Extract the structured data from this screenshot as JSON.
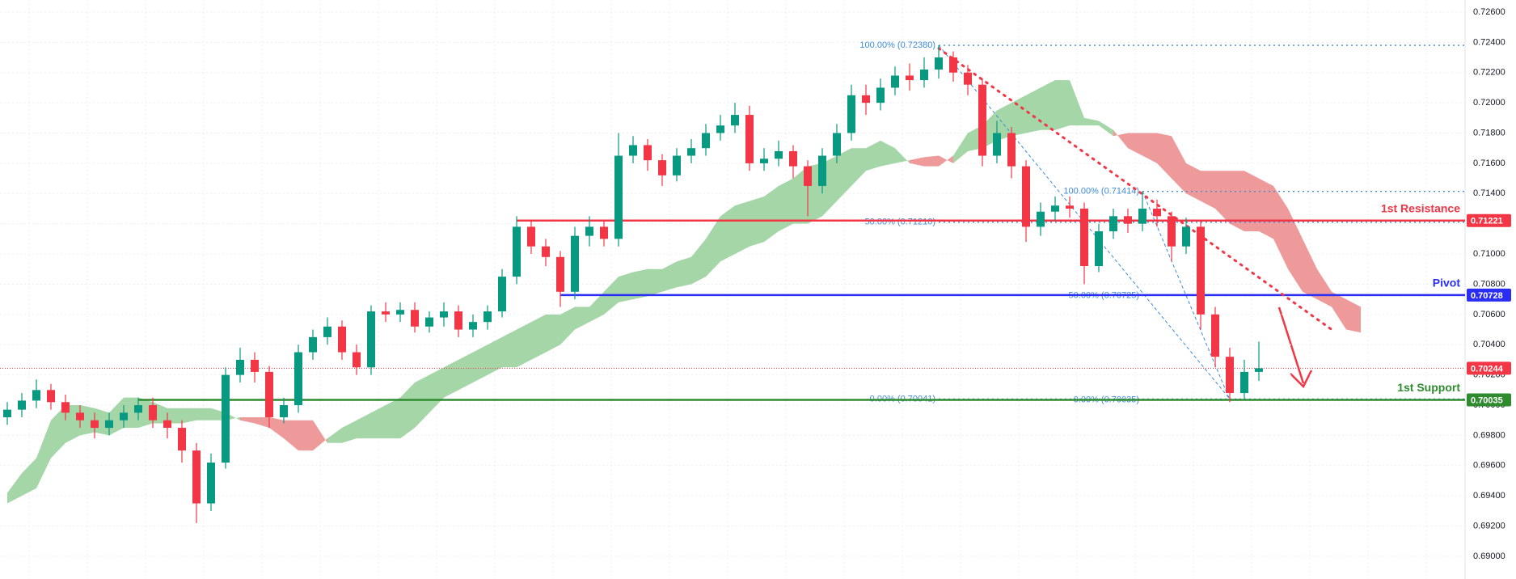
{
  "chart_data": {
    "type": "candlestick",
    "ylim": [
      0.6885,
      0.7268
    ],
    "yticks": [
      {
        "value": 0.69,
        "label": "0.69000"
      },
      {
        "value": 0.692,
        "label": "0.69200"
      },
      {
        "value": 0.694,
        "label": "0.69400"
      },
      {
        "value": 0.696,
        "label": "0.69600"
      },
      {
        "value": 0.698,
        "label": "0.69800"
      },
      {
        "value": 0.7,
        "label": "0.70000"
      },
      {
        "value": 0.702,
        "label": "0.70200"
      },
      {
        "value": 0.704,
        "label": "0.70400"
      },
      {
        "value": 0.706,
        "label": "0.70600"
      },
      {
        "value": 0.708,
        "label": "0.70800"
      },
      {
        "value": 0.71,
        "label": "0.71000"
      },
      {
        "value": 0.712,
        "label": "0.71200"
      },
      {
        "value": 0.714,
        "label": "0.71400"
      },
      {
        "value": 0.716,
        "label": "0.71600"
      },
      {
        "value": 0.718,
        "label": "0.71800"
      },
      {
        "value": 0.72,
        "label": "0.72000"
      },
      {
        "value": 0.722,
        "label": "0.72200"
      },
      {
        "value": 0.724,
        "label": "0.72400"
      },
      {
        "value": 0.726,
        "label": "0.72600"
      }
    ],
    "grid": true,
    "up_color": "#089981",
    "down_color": "#f23645",
    "open": [
      0.6992,
      0.6997,
      0.7003,
      0.701,
      0.7002,
      0.6995,
      0.699,
      0.6985,
      0.699,
      0.6995,
      0.7,
      0.699,
      0.6985,
      0.697,
      0.6935,
      0.6962,
      0.702,
      0.703,
      0.7022,
      0.6992,
      0.7,
      0.7035,
      0.7045,
      0.7052,
      0.7035,
      0.7025,
      0.7062,
      0.706,
      0.7063,
      0.7052,
      0.7058,
      0.7062,
      0.705,
      0.7055,
      0.7062,
      0.7085,
      0.7118,
      0.7105,
      0.7098,
      0.7075,
      0.7112,
      0.7118,
      0.711,
      0.7165,
      0.7172,
      0.7162,
      0.7152,
      0.7165,
      0.717,
      0.718,
      0.7185,
      0.7192,
      0.716,
      0.7163,
      0.7168,
      0.7158,
      0.7145,
      0.7165,
      0.718,
      0.7205,
      0.72,
      0.721,
      0.7218,
      0.7215,
      0.7222,
      0.723,
      0.722,
      0.7212,
      0.7165,
      0.718,
      0.7158,
      0.7118,
      0.7128,
      0.7132,
      0.713,
      0.7092,
      0.7115,
      0.7125,
      0.712,
      0.713,
      0.7125,
      0.7105,
      0.7118,
      0.706,
      0.7032,
      0.7008,
      0.7022
    ],
    "high": [
      0.7002,
      0.7008,
      0.7017,
      0.7014,
      0.7007,
      0.7,
      0.6995,
      0.6995,
      0.7,
      0.7005,
      0.7005,
      0.6995,
      0.699,
      0.6975,
      0.6968,
      0.7025,
      0.7038,
      0.7035,
      0.7026,
      0.7005,
      0.704,
      0.705,
      0.7058,
      0.7056,
      0.704,
      0.7066,
      0.7068,
      0.7068,
      0.7068,
      0.7062,
      0.7068,
      0.7066,
      0.706,
      0.7066,
      0.709,
      0.7125,
      0.7122,
      0.711,
      0.7102,
      0.7118,
      0.7125,
      0.7122,
      0.718,
      0.7178,
      0.7176,
      0.7166,
      0.717,
      0.7176,
      0.7186,
      0.7192,
      0.72,
      0.7198,
      0.717,
      0.7175,
      0.7172,
      0.7162,
      0.717,
      0.7186,
      0.7212,
      0.7212,
      0.7216,
      0.7224,
      0.7226,
      0.723,
      0.7238,
      0.7234,
      0.7225,
      0.7216,
      0.7188,
      0.7184,
      0.7162,
      0.7134,
      0.7138,
      0.7138,
      0.7134,
      0.712,
      0.713,
      0.713,
      0.7141,
      0.7136,
      0.7128,
      0.7124,
      0.7122,
      0.7065,
      0.7038,
      0.703,
      0.7042
    ],
    "low": [
      0.6987,
      0.6992,
      0.6998,
      0.6997,
      0.699,
      0.6985,
      0.6978,
      0.698,
      0.6985,
      0.699,
      0.6985,
      0.6978,
      0.6962,
      0.6922,
      0.693,
      0.6958,
      0.7015,
      0.7015,
      0.6985,
      0.6988,
      0.6995,
      0.703,
      0.704,
      0.703,
      0.702,
      0.702,
      0.7055,
      0.7055,
      0.7048,
      0.7048,
      0.7052,
      0.7045,
      0.7045,
      0.705,
      0.7058,
      0.708,
      0.71,
      0.7092,
      0.7065,
      0.707,
      0.7105,
      0.7105,
      0.7105,
      0.716,
      0.7155,
      0.7145,
      0.7148,
      0.716,
      0.7165,
      0.7175,
      0.718,
      0.7155,
      0.7155,
      0.7158,
      0.715,
      0.7125,
      0.714,
      0.716,
      0.7175,
      0.7192,
      0.7195,
      0.7205,
      0.7208,
      0.721,
      0.7216,
      0.7214,
      0.7205,
      0.7158,
      0.716,
      0.715,
      0.7108,
      0.7112,
      0.7122,
      0.7124,
      0.708,
      0.7088,
      0.711,
      0.7114,
      0.7115,
      0.7118,
      0.7095,
      0.71,
      0.705,
      0.7025,
      0.7002,
      0.7004,
      0.7016
    ],
    "close": [
      0.6997,
      0.7003,
      0.701,
      0.7002,
      0.6995,
      0.699,
      0.6985,
      0.699,
      0.6995,
      0.7,
      0.699,
      0.6985,
      0.697,
      0.6935,
      0.6962,
      0.702,
      0.703,
      0.7022,
      0.6992,
      0.7,
      0.7035,
      0.7045,
      0.7052,
      0.7035,
      0.7025,
      0.7062,
      0.706,
      0.7063,
      0.7052,
      0.7058,
      0.7062,
      0.705,
      0.7055,
      0.7062,
      0.7085,
      0.7118,
      0.7105,
      0.7098,
      0.7075,
      0.7112,
      0.7118,
      0.711,
      0.7165,
      0.7172,
      0.7162,
      0.7152,
      0.7165,
      0.717,
      0.718,
      0.7185,
      0.7192,
      0.716,
      0.7163,
      0.7168,
      0.7158,
      0.7145,
      0.7165,
      0.718,
      0.7205,
      0.72,
      0.721,
      0.7218,
      0.7215,
      0.7222,
      0.723,
      0.722,
      0.7212,
      0.7165,
      0.718,
      0.7158,
      0.7118,
      0.7128,
      0.7132,
      0.713,
      0.7092,
      0.7115,
      0.7125,
      0.712,
      0.713,
      0.7125,
      0.7105,
      0.7118,
      0.706,
      0.7032,
      0.7008,
      0.7022,
      0.70244
    ],
    "cloud": {
      "up_color": "#a5d6a7",
      "down_color": "#ef9a9a",
      "span_a": [
        0.6942,
        0.6955,
        0.6965,
        0.699,
        0.7,
        0.7,
        0.6998,
        0.6995,
        0.7005,
        0.7005,
        0.7002,
        0.6998,
        0.6998,
        0.6998,
        0.6998,
        0.6995,
        0.699,
        0.6988,
        0.6985,
        0.6978,
        0.697,
        0.697,
        0.6978,
        0.6985,
        0.699,
        0.6995,
        0.7,
        0.7005,
        0.7015,
        0.702,
        0.7025,
        0.703,
        0.7035,
        0.704,
        0.7045,
        0.705,
        0.7055,
        0.706,
        0.706,
        0.7065,
        0.7065,
        0.7075,
        0.7085,
        0.7088,
        0.709,
        0.709,
        0.7095,
        0.7098,
        0.711,
        0.7125,
        0.7132,
        0.7135,
        0.7138,
        0.7145,
        0.715,
        0.7158,
        0.716,
        0.7165,
        0.717,
        0.717,
        0.7175,
        0.717,
        0.716,
        0.7158,
        0.7158,
        0.7165,
        0.718,
        0.7185,
        0.7195,
        0.72,
        0.7205,
        0.721,
        0.7215,
        0.7215,
        0.719,
        0.7188,
        0.7182,
        0.717,
        0.7165,
        0.716,
        0.715,
        0.714,
        0.7135,
        0.713,
        0.712,
        0.7115,
        0.7115,
        0.711,
        0.709,
        0.7075,
        0.707,
        0.7065,
        0.705,
        0.7048
      ],
      "span_b": [
        0.6935,
        0.694,
        0.6945,
        0.6965,
        0.6975,
        0.698,
        0.6982,
        0.698,
        0.6985,
        0.6985,
        0.6988,
        0.6988,
        0.6988,
        0.699,
        0.699,
        0.699,
        0.6992,
        0.6992,
        0.6992,
        0.699,
        0.699,
        0.699,
        0.6975,
        0.6975,
        0.6978,
        0.6978,
        0.6978,
        0.6978,
        0.6985,
        0.6995,
        0.7005,
        0.701,
        0.7015,
        0.702,
        0.7025,
        0.7025,
        0.703,
        0.7035,
        0.704,
        0.705,
        0.7055,
        0.706,
        0.7068,
        0.707,
        0.7072,
        0.7075,
        0.7078,
        0.708,
        0.7085,
        0.7095,
        0.71,
        0.7105,
        0.7108,
        0.7115,
        0.712,
        0.712,
        0.7125,
        0.7135,
        0.7145,
        0.7155,
        0.7158,
        0.716,
        0.7162,
        0.7164,
        0.7165,
        0.716,
        0.7168,
        0.717,
        0.7175,
        0.7178,
        0.718,
        0.7182,
        0.7182,
        0.7185,
        0.7185,
        0.7185,
        0.7178,
        0.718,
        0.718,
        0.718,
        0.7178,
        0.716,
        0.7155,
        0.7155,
        0.7155,
        0.7155,
        0.715,
        0.7145,
        0.713,
        0.711,
        0.709,
        0.7075,
        0.707,
        0.7065
      ]
    },
    "levels": [
      {
        "name": "1st Resistance",
        "value": 0.71221,
        "color": "#f23645"
      },
      {
        "name": "Pivot",
        "value": 0.70728,
        "color": "#2a2ef5"
      },
      {
        "name": "1st Support",
        "value": 0.70035,
        "color": "#2e8b2e"
      }
    ],
    "last": {
      "value": 0.70244,
      "color": "#f23645"
    },
    "fibs": [
      {
        "x": [
          64,
          84
        ],
        "levels": [
          0.7238,
          0.7121,
          0.70041
        ],
        "labels": [
          "100.00% (0.72380)",
          "50.00% (0.71210)",
          "0.00% (0.70041)"
        ],
        "color": "#3d8bd9"
      },
      {
        "x": [
          78,
          84
        ],
        "levels": [
          0.71414,
          0.70725,
          0.70035
        ],
        "labels": [
          "100.00% (0.71414)",
          "50.00% (0.70725)",
          "0.00% (0.70035)"
        ],
        "color": "#3d8bd9"
      }
    ],
    "trendline": {
      "x": [
        64,
        91
      ],
      "y": [
        0.7236,
        0.705
      ],
      "color": "#f23645"
    }
  }
}
